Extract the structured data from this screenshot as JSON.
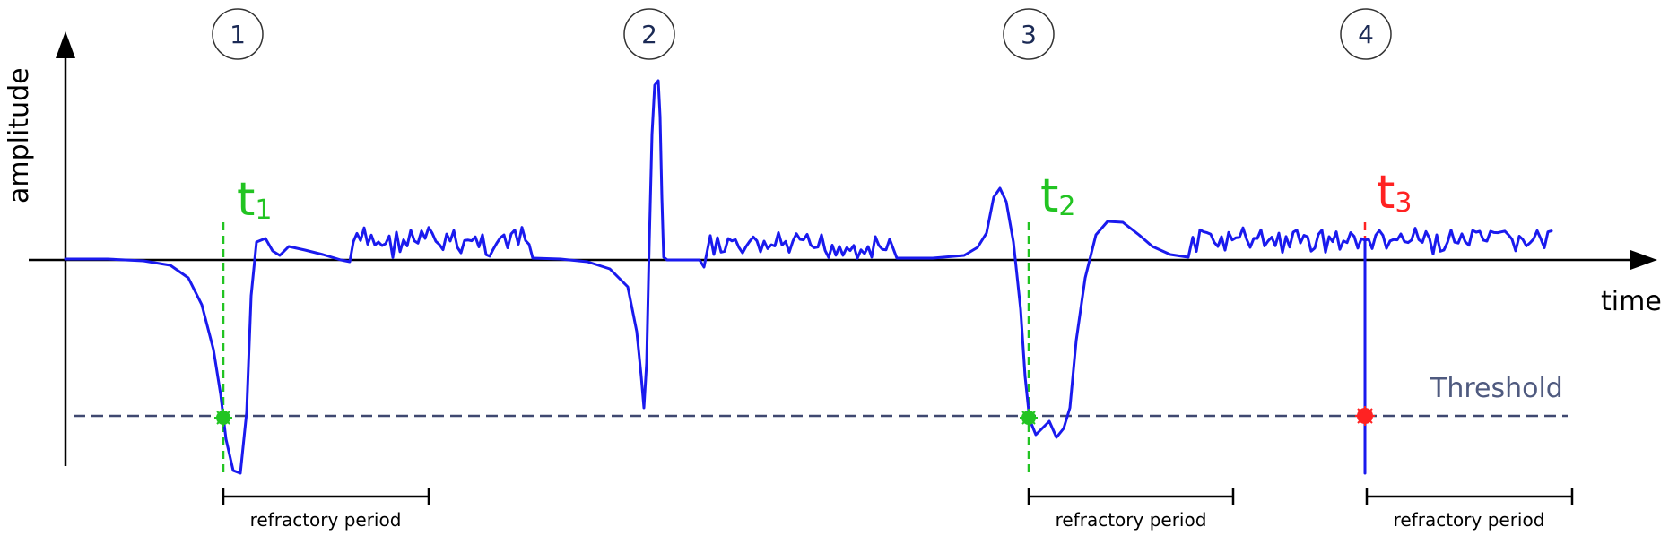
{
  "axes": {
    "y_label": "amplitude",
    "x_label": "time"
  },
  "markers": [
    "1",
    "2",
    "3",
    "4"
  ],
  "events": [
    {
      "label": "t",
      "subscript": "1",
      "color": "#22c422"
    },
    {
      "label": "t",
      "subscript": "2",
      "color": "#22c422"
    },
    {
      "label": "t",
      "subscript": "3",
      "color": "#ff2222"
    }
  ],
  "threshold_label": "Threshold",
  "refractory_label": "refractory period",
  "colors": {
    "signal": "#1a1aee",
    "detected": "#22c422",
    "rejected": "#ff2222",
    "threshold": "#3f4870",
    "axis": "#000000"
  }
}
